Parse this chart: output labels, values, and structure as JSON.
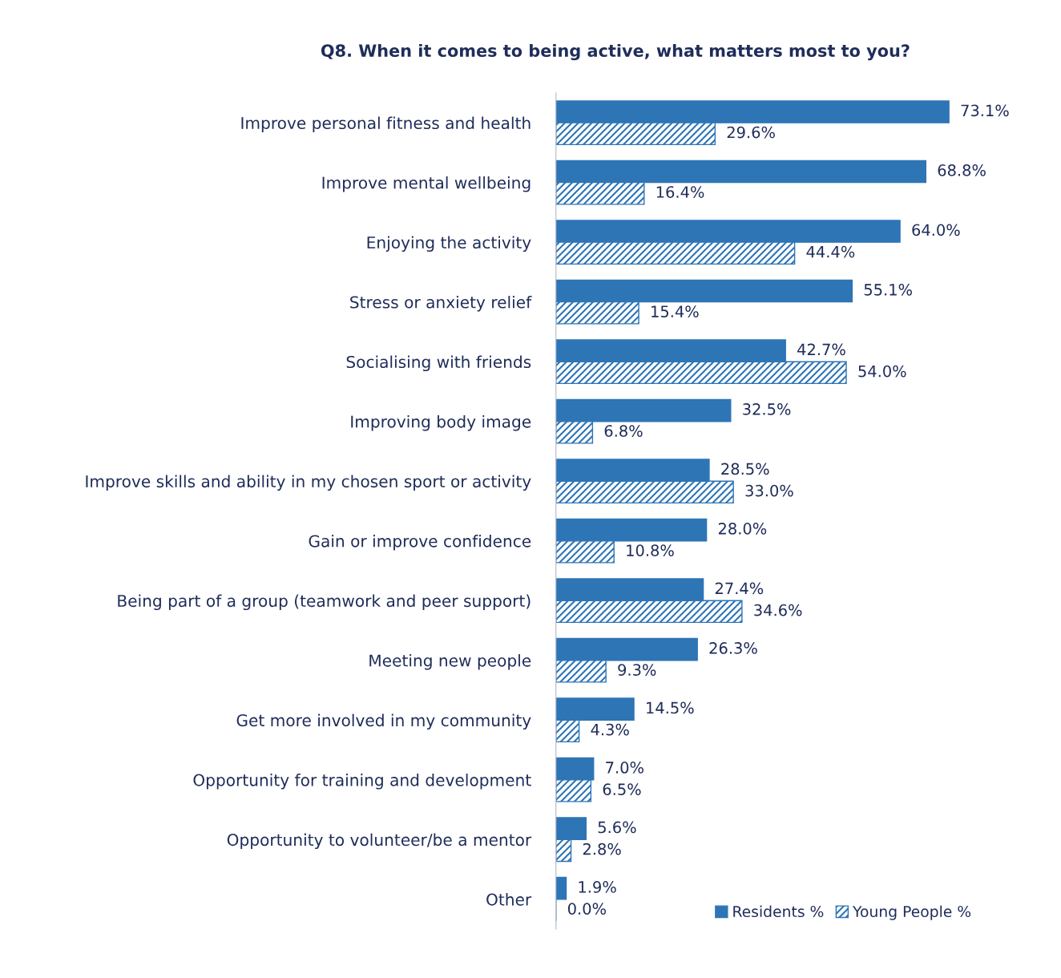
{
  "chart_data": {
    "type": "bar",
    "orientation": "horizontal",
    "title": "Q8. When it comes to being active, what matters most to you?",
    "categories": [
      "Improve personal fitness and health",
      "Improve mental wellbeing",
      "Enjoying the activity",
      "Stress or anxiety relief",
      "Socialising with friends",
      "Improving body image",
      "Improve skills and ability in my chosen sport or activity",
      "Gain or improve confidence",
      "Being part of a group (teamwork and peer support)",
      "Meeting new people",
      "Get more involved in my community",
      "Opportunity for training and development",
      "Opportunity to volunteer/be a mentor",
      "Other"
    ],
    "series": [
      {
        "name": "Residents %",
        "color": "#2e75b6",
        "values": [
          73.1,
          68.8,
          64.0,
          55.1,
          42.7,
          32.5,
          28.5,
          28.0,
          27.4,
          26.3,
          14.5,
          7.0,
          5.6,
          1.9
        ],
        "value_labels": [
          "73.1%",
          "68.8%",
          "64.0%",
          "55.1%",
          "42.7%",
          "32.5%",
          "28.5%",
          "28.0%",
          "27.4%",
          "26.3%",
          "14.5%",
          "7.0%",
          "5.6%",
          "1.9%"
        ]
      },
      {
        "name": "Young People %",
        "color": "#2e75b6",
        "values": [
          29.6,
          16.4,
          44.4,
          15.4,
          54.0,
          6.8,
          33.0,
          10.8,
          34.6,
          9.3,
          4.3,
          6.5,
          2.8,
          0.0
        ],
        "value_labels": [
          "29.6%",
          "16.4%",
          "44.4%",
          "15.4%",
          "54.0%",
          "6.8%",
          "33.0%",
          "10.8%",
          "34.6%",
          "9.3%",
          "4.3%",
          "6.5%",
          "2.8%",
          "0.0%"
        ]
      }
    ],
    "legend": "bottom right",
    "grid": false
  }
}
